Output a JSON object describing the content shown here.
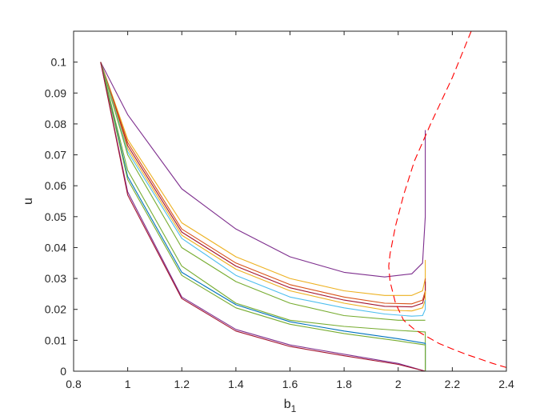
{
  "chart_data": {
    "type": "line",
    "title": "",
    "xlabel": "b",
    "xlabel_subscript": "1",
    "ylabel": "u",
    "xlim": [
      0.8,
      2.4
    ],
    "ylim": [
      0,
      0.11
    ],
    "xticks": [
      "0.8",
      "1",
      "1.2",
      "1.4",
      "1.6",
      "1.8",
      "2",
      "2.2",
      "2.4"
    ],
    "yticks": [
      "0",
      "0.01",
      "0.02",
      "0.03",
      "0.04",
      "0.05",
      "0.06",
      "0.07",
      "0.08",
      "0.09",
      "0.1"
    ],
    "grid": false,
    "legend": "none",
    "series": [
      {
        "color": "#7E2F8E",
        "style": "solid",
        "x": [
          0.9,
          1.0,
          1.2,
          1.4,
          1.6,
          1.8,
          1.95,
          2.05,
          2.09,
          2.1,
          2.1
        ],
        "y": [
          0.1,
          0.083,
          0.059,
          0.046,
          0.037,
          0.032,
          0.0305,
          0.0315,
          0.035,
          0.05,
          0.078
        ]
      },
      {
        "color": "#EDB120",
        "style": "solid",
        "x": [
          0.9,
          1.0,
          1.2,
          1.4,
          1.6,
          1.8,
          1.95,
          2.05,
          2.09,
          2.1,
          2.1
        ],
        "y": [
          0.1,
          0.075,
          0.048,
          0.037,
          0.03,
          0.026,
          0.0245,
          0.0245,
          0.026,
          0.03,
          0.036
        ]
      },
      {
        "color": "#D95319",
        "style": "solid",
        "x": [
          0.9,
          1.0,
          1.2,
          1.4,
          1.6,
          1.8,
          1.95,
          2.05,
          2.09,
          2.1,
          2.1
        ],
        "y": [
          0.1,
          0.074,
          0.046,
          0.035,
          0.028,
          0.024,
          0.022,
          0.0218,
          0.023,
          0.026,
          0.03
        ]
      },
      {
        "color": "#A2142F",
        "style": "solid",
        "x": [
          0.9,
          1.0,
          1.2,
          1.4,
          1.6,
          1.8,
          1.95,
          2.05,
          2.09,
          2.1,
          2.1
        ],
        "y": [
          0.1,
          0.073,
          0.045,
          0.034,
          0.027,
          0.023,
          0.021,
          0.0208,
          0.022,
          0.025,
          0.029
        ]
      },
      {
        "color": "#EDB120",
        "style": "solid",
        "x": [
          0.9,
          1.0,
          1.2,
          1.4,
          1.6,
          1.8,
          1.95,
          2.05,
          2.09,
          2.1,
          2.1
        ],
        "y": [
          0.1,
          0.072,
          0.044,
          0.033,
          0.026,
          0.022,
          0.0198,
          0.0195,
          0.0205,
          0.023,
          0.026
        ]
      },
      {
        "color": "#4DBEEE",
        "style": "solid",
        "x": [
          0.9,
          1.0,
          1.2,
          1.4,
          1.6,
          1.8,
          1.95,
          2.05,
          2.09,
          2.1,
          2.1
        ],
        "y": [
          0.1,
          0.071,
          0.043,
          0.031,
          0.024,
          0.0205,
          0.0185,
          0.0178,
          0.018,
          0.02,
          0.023
        ]
      },
      {
        "color": "#77AC30",
        "style": "solid",
        "x": [
          0.9,
          1.0,
          1.2,
          1.4,
          1.6,
          1.8,
          2.0,
          2.1
        ],
        "y": [
          0.1,
          0.07,
          0.04,
          0.029,
          0.022,
          0.018,
          0.0165,
          0.0165
        ]
      },
      {
        "color": "#77AC30",
        "style": "solid",
        "x": [
          0.9,
          1.0,
          1.2,
          1.4,
          1.6,
          1.8,
          2.0,
          2.1,
          2.1,
          2.1
        ],
        "y": [
          0.1,
          0.065,
          0.034,
          0.022,
          0.0165,
          0.0145,
          0.0132,
          0.0127,
          0.006,
          0.0
        ]
      },
      {
        "color": "#0072BD",
        "style": "solid",
        "x": [
          0.9,
          1.0,
          1.2,
          1.4,
          1.6,
          1.8,
          2.0,
          2.1,
          2.1,
          2.1
        ],
        "y": [
          0.1,
          0.063,
          0.032,
          0.0215,
          0.016,
          0.013,
          0.0105,
          0.009,
          0.005,
          0.0
        ]
      },
      {
        "color": "#77AC30",
        "style": "solid",
        "x": [
          0.9,
          1.0,
          1.2,
          1.4,
          1.6,
          1.8,
          2.0,
          2.1,
          2.1
        ],
        "y": [
          0.1,
          0.062,
          0.031,
          0.0205,
          0.0152,
          0.0122,
          0.0098,
          0.0085,
          0.0
        ]
      },
      {
        "color": "#7E2F8E",
        "style": "solid",
        "x": [
          0.9,
          1.0,
          1.2,
          1.4,
          1.6,
          1.8,
          2.0,
          2.1
        ],
        "y": [
          0.1,
          0.058,
          0.024,
          0.0135,
          0.0085,
          0.0055,
          0.0025,
          0.0
        ]
      },
      {
        "color": "#A2142F",
        "style": "solid",
        "x": [
          0.9,
          1.0,
          1.2,
          1.4,
          1.6,
          1.8,
          2.0,
          2.1
        ],
        "y": [
          0.1,
          0.057,
          0.0235,
          0.013,
          0.008,
          0.005,
          0.0022,
          0.0
        ]
      },
      {
        "color": "#FF0000",
        "style": "dashed",
        "x": [
          2.27,
          2.2,
          2.12,
          2.06,
          2.02,
          1.99,
          1.97,
          1.965,
          1.97,
          1.99,
          2.02,
          2.06,
          2.1,
          2.15,
          2.2,
          2.25,
          2.3,
          2.35,
          2.4
        ],
        "y": [
          0.11,
          0.095,
          0.08,
          0.068,
          0.057,
          0.047,
          0.038,
          0.034,
          0.029,
          0.022,
          0.0165,
          0.0135,
          0.0115,
          0.009,
          0.0072,
          0.0055,
          0.004,
          0.0025,
          0.0012
        ]
      }
    ]
  }
}
